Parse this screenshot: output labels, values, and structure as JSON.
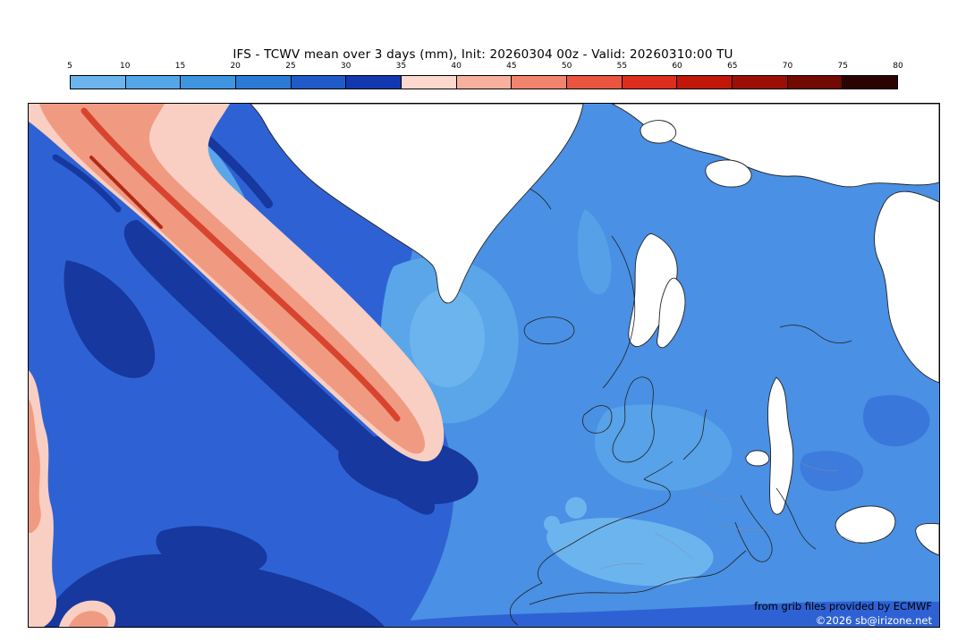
{
  "title": "IFS - TCWV mean over 3 days (mm), Init: 20260304 00z - Valid: 20260310:00 TU",
  "colorbar": {
    "ticks": [
      "5",
      "10",
      "15",
      "20",
      "25",
      "30",
      "35",
      "40",
      "45",
      "50",
      "55",
      "60",
      "65",
      "70",
      "75",
      "80"
    ],
    "segment_colors": [
      "#6cb4ee",
      "#55a6e8",
      "#3f94e0",
      "#2c7ad6",
      "#1f5ac8",
      "#1238b0",
      "#fbd9ce",
      "#f7b09d",
      "#f2836c",
      "#ea5540",
      "#dd2d1c",
      "#c01708",
      "#9d0f04",
      "#700a02",
      "#2b0300"
    ]
  },
  "map": {
    "credits": {
      "line1": "from grib files provided by ECMWF",
      "line2": "©2026 sb@irizone.net"
    },
    "palette": {
      "lighter_blue": "#6cb4ee",
      "light_blue": "#5aa6e8",
      "medium_blue": "#4a90e4",
      "royal_blue": "#2e62d4",
      "navy_blue": "#16389f",
      "pale_pink": "#f8cfc2",
      "salmon": "#f19a82",
      "red_streak": "#d8442e",
      "dark_red": "#b42a16",
      "land": "#ffffff",
      "coastline": "#222222"
    }
  },
  "chart_data": {
    "type": "heatmap",
    "title": "IFS - TCWV mean over 3 days (mm), Init: 20260304 00z - Valid: 20260310:00 TU",
    "units": "mm",
    "scale_ticks": [
      5,
      10,
      15,
      20,
      25,
      30,
      35,
      40,
      45,
      50,
      55,
      60,
      65,
      70,
      75,
      80
    ],
    "scale_colors": [
      "#6cb4ee",
      "#55a6e8",
      "#3f94e0",
      "#2c7ad6",
      "#1f5ac8",
      "#1238b0",
      "#fbd9ce",
      "#f7b09d",
      "#f2836c",
      "#ea5540",
      "#dd2d1c",
      "#c01708",
      "#9d0f04",
      "#700a02",
      "#2b0300"
    ],
    "legend_position": "top"
  }
}
